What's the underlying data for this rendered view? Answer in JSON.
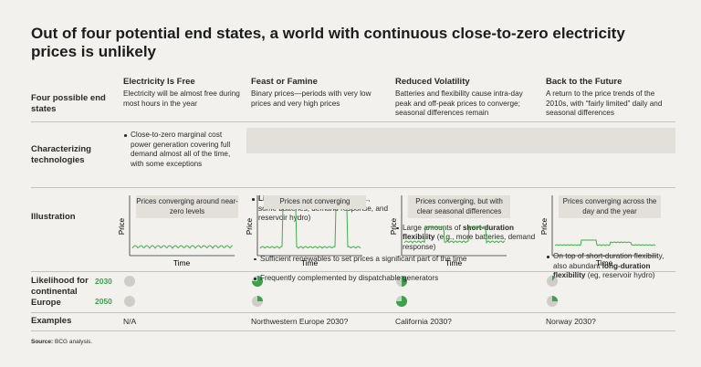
{
  "title": "Out of four potential end states, a world with continuous close-to-zero electricity prices is unlikely",
  "columns": [
    "Electricity Is Free",
    "Feast or Famine",
    "Reduced Volatility",
    "Back to the Future"
  ],
  "rows": {
    "end_states": {
      "label": "Four possible end states",
      "cells": [
        [
          {
            "text": "Electricity will be almost free during most hours in the year"
          }
        ],
        [
          {
            "text": "Binary prices—periods with very low prices and very high prices"
          }
        ],
        [
          {
            "text": "Batteries and flexibility cause intra-day peak and off-peak prices to converge; seasonal differences remain"
          }
        ],
        [
          {
            "text": "A return to the price trends of the 2010s, with “fairly limited” daily and seasonal differences"
          }
        ]
      ]
    },
    "technologies": {
      "label": "Characterizing technologies",
      "shared": [
        "Sufficient renewables to set prices a significant part of the time",
        "Frequently complemented by dispatchable generators"
      ],
      "cells": [
        [
          {
            "text": "Close-to-zero marginal cost power generation covering full demand almost all of the time, with some exceptions"
          }
        ],
        [
          {
            "text": "Limited flexibility",
            "bold": true
          },
          {
            "text": " available (e.g., some batteries, demand response, and reservoir hydro)"
          }
        ],
        [
          {
            "text": "Large amounts of "
          },
          {
            "text": "short-duration flexibility",
            "bold": true
          },
          {
            "text": " (e.g., more batteries, demand response)"
          }
        ],
        [
          {
            "text": "On top of short-duration flexibility, also abundant "
          },
          {
            "text": "long-duration flexibility",
            "bold": true
          },
          {
            "text": " (eg, reservoir hydro)"
          }
        ]
      ]
    },
    "illustration": {
      "label": "Illustration",
      "y_label": "Price",
      "x_label": "Time",
      "captions": [
        "Prices converging around near-zero levels",
        "Prices not converging",
        "Prices converging, but with clear seasonal differences",
        "Prices converging across the day and the year"
      ]
    },
    "likelihood": {
      "label": "Likelihood for continental Europe",
      "years": [
        "2030",
        "2050"
      ],
      "color": "#3aa34a",
      "values": [
        [
          0,
          75,
          50,
          10
        ],
        [
          0,
          25,
          75,
          25
        ]
      ]
    },
    "examples": {
      "label": "Examples",
      "cells": [
        "N/A",
        "Northwestern Europe 2030?",
        "California 2030?",
        "Norway 2030?"
      ]
    }
  },
  "source": [
    {
      "text": "Source:",
      "bold": true
    },
    {
      "text": " BCG analysis."
    }
  ]
}
